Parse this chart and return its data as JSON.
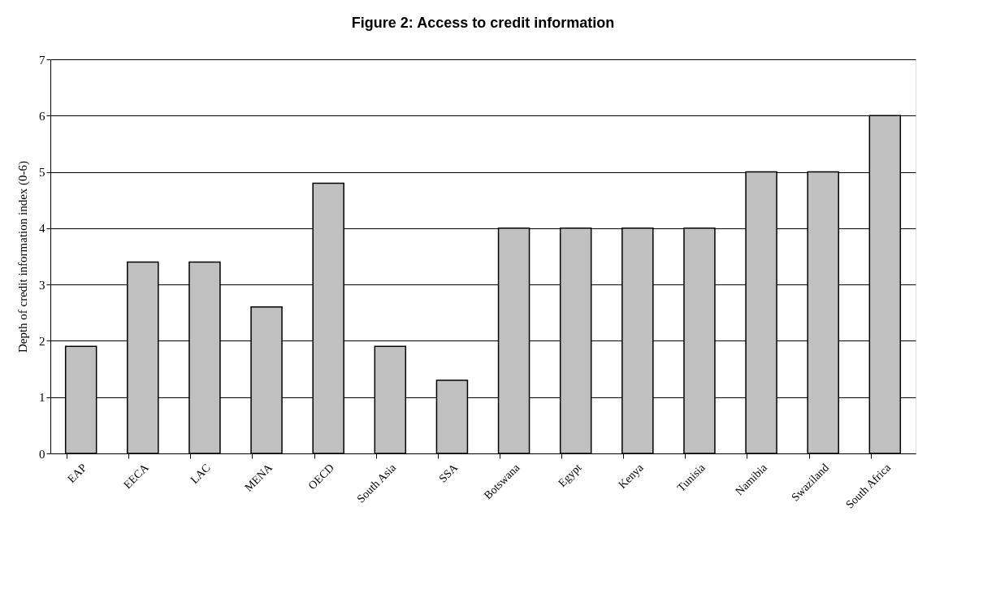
{
  "chart_data": {
    "type": "bar",
    "title": "Figure 2:  Access to credit information",
    "ylabel": "Depth of credit information index (0-6)",
    "categories": [
      "EAP",
      "EECA",
      "LAC",
      "MENA",
      "OECD",
      "South Asia",
      "SSA",
      "Botswana",
      "Egypt",
      "Kenya",
      "Tunisia",
      "Namibia",
      "Swaziland",
      "South Africa"
    ],
    "values": [
      1.9,
      3.4,
      3.4,
      2.6,
      4.8,
      1.9,
      1.3,
      4,
      4,
      4,
      4,
      5,
      5,
      6
    ],
    "color": "#c0c0c0",
    "ylim": [
      0,
      7
    ],
    "yticks": [
      0,
      1,
      2,
      3,
      4,
      5,
      6,
      7
    ],
    "grid": "y"
  }
}
